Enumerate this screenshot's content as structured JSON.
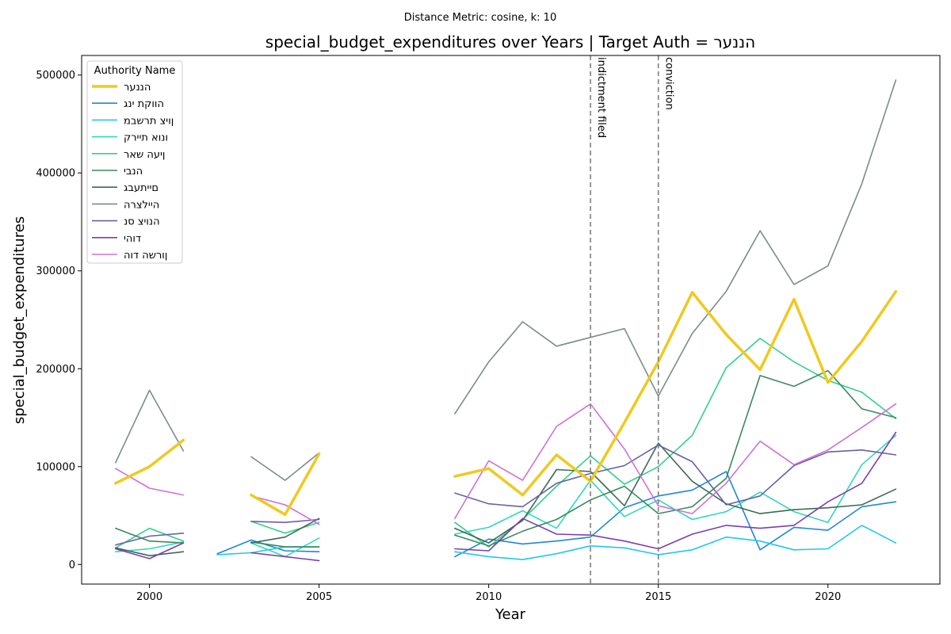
{
  "chart_data": {
    "type": "line",
    "suptitle": "Distance Metric: cosine, k: 10",
    "title": "special_budget_expenditures over Years | Target Auth = הננער",
    "xlabel": "Year",
    "ylabel": "special_budget_expenditures",
    "xlim": [
      1998,
      2023.3
    ],
    "ylim": [
      -20000,
      520000
    ],
    "xticks": [
      2000,
      2005,
      2010,
      2015,
      2020
    ],
    "yticks": [
      0,
      100000,
      200000,
      300000,
      400000,
      500000
    ],
    "grid": false,
    "legend_title": "Authority Name",
    "legend_position": "top-left",
    "annotations": [
      {
        "label": "indictment filed",
        "x": 2013
      },
      {
        "label": "conviction",
        "x": 2015
      }
    ],
    "series": [
      {
        "name": "הננער",
        "color": "#f0c91e",
        "width": 3.5,
        "points": [
          [
            1999,
            83000
          ],
          [
            2000,
            100000
          ],
          [
            2001,
            127000
          ],
          null,
          [
            2003,
            71000
          ],
          [
            2004,
            51000
          ],
          [
            2005,
            113000
          ],
          null,
          [
            2009,
            90000
          ],
          [
            2010,
            98000
          ],
          [
            2011,
            71000
          ],
          [
            2012,
            112000
          ],
          [
            2013,
            85000
          ],
          [
            2014,
            145000
          ],
          [
            2015,
            207000
          ],
          [
            2016,
            278000
          ],
          [
            2017,
            235000
          ],
          [
            2018,
            199000
          ],
          [
            2019,
            271000
          ],
          [
            2020,
            186000
          ],
          [
            2021,
            228000
          ],
          [
            2022,
            279000
          ]
        ]
      },
      {
        "name": "הווקת ינג",
        "color": "#1f88d8",
        "width": 1.6,
        "points": [
          null,
          [
            2002,
            11000
          ],
          [
            2003,
            25000
          ],
          [
            2004,
            14000
          ],
          [
            2005,
            13000
          ],
          null,
          [
            2009,
            8000
          ],
          [
            2010,
            26000
          ],
          [
            2011,
            21000
          ],
          [
            2012,
            24000
          ],
          [
            2013,
            28000
          ],
          [
            2014,
            58000
          ],
          [
            2015,
            70000
          ],
          [
            2016,
            76000
          ],
          [
            2017,
            95000
          ],
          [
            2018,
            15000
          ],
          [
            2019,
            38000
          ],
          [
            2020,
            35000
          ],
          [
            2021,
            59000
          ],
          [
            2022,
            64000
          ]
        ]
      },
      {
        "name": "ןויצ תרשבמ",
        "color": "#20c8f0",
        "width": 1.6,
        "points": [
          null,
          [
            2002,
            10000
          ],
          [
            2003,
            12000
          ],
          [
            2004,
            18000
          ],
          [
            2005,
            18000
          ],
          null,
          [
            2009,
            13000
          ],
          [
            2010,
            8000
          ],
          [
            2011,
            5000
          ],
          [
            2012,
            11000
          ],
          [
            2013,
            19000
          ],
          [
            2014,
            17000
          ],
          [
            2015,
            10000
          ],
          [
            2016,
            15000
          ],
          [
            2017,
            28000
          ],
          [
            2018,
            24000
          ],
          [
            2019,
            15000
          ],
          [
            2020,
            16000
          ],
          [
            2021,
            40000
          ],
          [
            2022,
            22000
          ]
        ]
      },
      {
        "name": "ונוא תיירק",
        "color": "#2ed9b8",
        "width": 1.6,
        "points": [
          [
            1999,
            13000
          ],
          [
            2000,
            16000
          ],
          [
            2001,
            23000
          ],
          null,
          [
            2003,
            22000
          ],
          [
            2004,
            8000
          ],
          [
            2005,
            27000
          ],
          null,
          [
            2009,
            31000
          ],
          [
            2010,
            38000
          ],
          [
            2011,
            55000
          ],
          [
            2012,
            37000
          ],
          [
            2013,
            86000
          ],
          [
            2014,
            49000
          ],
          [
            2015,
            66000
          ],
          [
            2016,
            46000
          ],
          [
            2017,
            54000
          ],
          [
            2018,
            74000
          ],
          [
            2019,
            54000
          ],
          [
            2020,
            43000
          ],
          [
            2021,
            102000
          ],
          [
            2022,
            132000
          ]
        ]
      },
      {
        "name": "ןיעה שאר",
        "color": "#30d08a",
        "width": 1.6,
        "points": [
          [
            1999,
            17000
          ],
          [
            2000,
            37000
          ],
          [
            2001,
            24000
          ],
          null,
          [
            2003,
            44000
          ],
          [
            2004,
            32000
          ],
          [
            2005,
            43000
          ],
          null,
          [
            2009,
            43000
          ],
          [
            2010,
            18000
          ],
          [
            2011,
            46000
          ],
          [
            2012,
            80000
          ],
          [
            2013,
            111000
          ],
          [
            2014,
            82000
          ],
          [
            2015,
            100000
          ],
          [
            2016,
            132000
          ],
          [
            2017,
            201000
          ],
          [
            2018,
            231000
          ],
          [
            2019,
            207000
          ],
          [
            2020,
            188000
          ],
          [
            2021,
            176000
          ],
          [
            2022,
            149000
          ]
        ]
      },
      {
        "name": "הנבי",
        "color": "#3a8a5e",
        "width": 1.6,
        "points": [
          [
            1999,
            37000
          ],
          [
            2000,
            24000
          ],
          [
            2001,
            22000
          ],
          null,
          [
            2003,
            23000
          ],
          [
            2004,
            18000
          ],
          [
            2005,
            18000
          ],
          null,
          [
            2009,
            30000
          ],
          [
            2010,
            19000
          ],
          [
            2011,
            34000
          ],
          [
            2012,
            46000
          ],
          [
            2013,
            66000
          ],
          [
            2014,
            80000
          ],
          [
            2015,
            52000
          ],
          [
            2016,
            59000
          ],
          [
            2017,
            88000
          ],
          [
            2018,
            193000
          ],
          [
            2019,
            182000
          ],
          [
            2020,
            198000
          ],
          [
            2021,
            159000
          ],
          [
            2022,
            150000
          ]
        ]
      },
      {
        "name": "םייתעבג",
        "color": "#3d6b55",
        "width": 1.6,
        "points": [
          [
            1999,
            17000
          ],
          [
            2000,
            9000
          ],
          [
            2001,
            13000
          ],
          null,
          [
            2003,
            22000
          ],
          [
            2004,
            28000
          ],
          [
            2005,
            47000
          ],
          null,
          [
            2009,
            37000
          ],
          [
            2010,
            22000
          ],
          [
            2011,
            45000
          ],
          [
            2012,
            97000
          ],
          [
            2013,
            95000
          ],
          [
            2014,
            60000
          ],
          [
            2015,
            124000
          ],
          [
            2016,
            85000
          ],
          [
            2017,
            62000
          ],
          [
            2018,
            52000
          ],
          [
            2019,
            56000
          ],
          [
            2020,
            58000
          ],
          [
            2021,
            61000
          ],
          [
            2022,
            77000
          ]
        ]
      },
      {
        "name": "היילצרה",
        "color": "#7d8c87",
        "width": 1.6,
        "points": [
          [
            1999,
            104000
          ],
          [
            2000,
            178000
          ],
          [
            2001,
            116000
          ],
          null,
          [
            2003,
            110000
          ],
          [
            2004,
            86000
          ],
          [
            2005,
            114000
          ],
          null,
          [
            2009,
            154000
          ],
          [
            2010,
            207000
          ],
          [
            2011,
            248000
          ],
          [
            2012,
            223000
          ],
          [
            2013,
            232000
          ],
          [
            2014,
            241000
          ],
          [
            2015,
            172000
          ],
          [
            2016,
            236000
          ],
          [
            2017,
            279000
          ],
          [
            2018,
            341000
          ],
          [
            2019,
            286000
          ],
          [
            2020,
            305000
          ],
          [
            2021,
            389000
          ],
          [
            2022,
            495000
          ]
        ]
      },
      {
        "name": "הנויצ סנ",
        "color": "#6a5fa8",
        "width": 1.6,
        "points": [
          [
            1999,
            20000
          ],
          [
            2000,
            29000
          ],
          [
            2001,
            32000
          ],
          null,
          [
            2003,
            44000
          ],
          [
            2004,
            43000
          ],
          [
            2005,
            46000
          ],
          null,
          [
            2009,
            73000
          ],
          [
            2010,
            62000
          ],
          [
            2011,
            59000
          ],
          [
            2012,
            83000
          ],
          [
            2013,
            93000
          ],
          [
            2014,
            101000
          ],
          [
            2015,
            122000
          ],
          [
            2016,
            105000
          ],
          [
            2017,
            61000
          ],
          [
            2018,
            70000
          ],
          [
            2019,
            101000
          ],
          [
            2020,
            115000
          ],
          [
            2021,
            117000
          ],
          [
            2022,
            112000
          ]
        ]
      },
      {
        "name": "דוהי",
        "color": "#7b3fb0",
        "width": 1.6,
        "points": [
          [
            1999,
            16000
          ],
          [
            2000,
            6000
          ],
          [
            2001,
            22000
          ],
          null,
          [
            2003,
            12000
          ],
          [
            2004,
            8000
          ],
          [
            2005,
            4000
          ],
          null,
          [
            2009,
            16000
          ],
          [
            2010,
            14000
          ],
          [
            2011,
            47000
          ],
          [
            2012,
            31000
          ],
          [
            2013,
            30000
          ],
          [
            2014,
            24000
          ],
          [
            2015,
            16000
          ],
          [
            2016,
            31000
          ],
          [
            2017,
            40000
          ],
          [
            2018,
            37000
          ],
          [
            2019,
            40000
          ],
          [
            2020,
            64000
          ],
          [
            2021,
            83000
          ],
          [
            2022,
            135000
          ]
        ]
      },
      {
        "name": "ןורשה דוה",
        "color": "#d070d8",
        "width": 1.6,
        "points": [
          [
            1999,
            98000
          ],
          [
            2000,
            78000
          ],
          [
            2001,
            71000
          ],
          null,
          [
            2003,
            70000
          ],
          [
            2004,
            61000
          ],
          [
            2005,
            41000
          ],
          null,
          [
            2009,
            47000
          ],
          [
            2010,
            106000
          ],
          [
            2011,
            86000
          ],
          [
            2012,
            141000
          ],
          [
            2013,
            164000
          ],
          [
            2014,
            118000
          ],
          [
            2015,
            60000
          ],
          [
            2016,
            52000
          ],
          [
            2017,
            83000
          ],
          [
            2018,
            126000
          ],
          [
            2019,
            102000
          ],
          [
            2020,
            117000
          ],
          [
            2021,
            140000
          ],
          [
            2022,
            164000
          ]
        ]
      }
    ]
  }
}
